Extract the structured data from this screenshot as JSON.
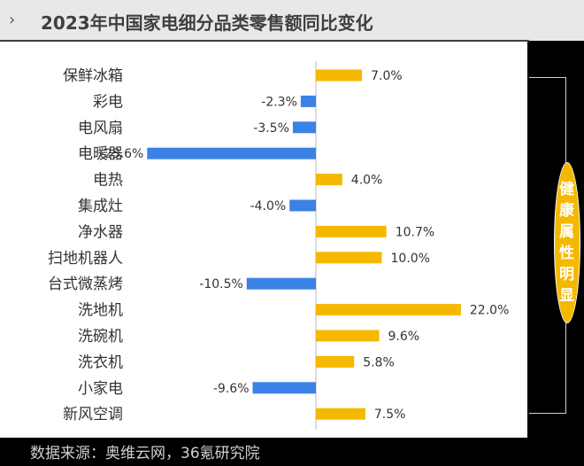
{
  "header": {
    "chevron": "›",
    "title": "2023年中国家电细分品类零售额同比变化"
  },
  "chart_data": {
    "type": "bar",
    "orientation": "horizontal",
    "categories": [
      "保鲜冰箱",
      "彩电",
      "电风扇",
      "电暖器",
      "电热",
      "集成灶",
      "净水器",
      "扫地机器人",
      "台式微蒸烤",
      "洗地机",
      "洗碗机",
      "洗衣机",
      "小家电",
      "新风空调"
    ],
    "values": [
      7.0,
      -2.3,
      -3.5,
      -25.6,
      4.0,
      -4.0,
      10.7,
      10.0,
      -10.5,
      22.0,
      9.6,
      5.8,
      -9.6,
      7.5
    ],
    "data_labels": [
      "7.0%",
      "-2.3%",
      "-3.5%",
      "-25.6%",
      "4.0%",
      "-4.0%",
      "10.7%",
      "10.0%",
      "-10.5%",
      "22.0%",
      "9.6%",
      "5.8%",
      "-9.6%",
      "7.5%"
    ],
    "title": "2023年中国家电细分品类零售额同比变化",
    "xlabel": "",
    "ylabel": "",
    "xlim": [
      -26.5,
      22.5
    ],
    "grid": false,
    "colors": {
      "positive": "#f5b800",
      "negative": "#3b82e6",
      "axis": "#b8b8b8",
      "label": "#333333"
    }
  },
  "annotation": {
    "text": "健康属性明显",
    "color": "#f5b800"
  },
  "footer": {
    "source": "数据来源：奥维云网，36氪研究院"
  }
}
